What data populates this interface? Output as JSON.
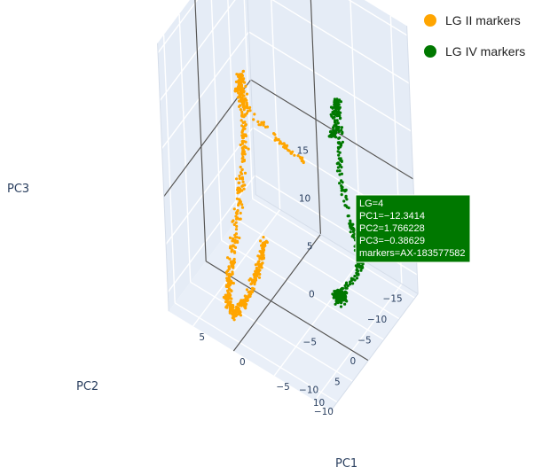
{
  "chart_data": {
    "type": "scatter",
    "dimensions": 3,
    "title": "",
    "axes": {
      "x": {
        "title": "PC1",
        "ticks": [
          "−10",
          "−5",
          "0",
          "5"
        ],
        "range": [
          -12,
          8
        ]
      },
      "y": {
        "title": "PC2",
        "ticks": [
          "−15",
          "−10",
          "−5",
          "0",
          "5",
          "10"
        ],
        "range": [
          -16,
          12
        ]
      },
      "z": {
        "title": "PC3",
        "ticks": [
          "−10",
          "−5",
          "0",
          "5",
          "10",
          "15"
        ],
        "range": [
          -12,
          16
        ]
      }
    },
    "grid": true,
    "background_color": "#e5ecf6",
    "legend": {
      "placement": "top-right",
      "entries": [
        {
          "name": "LG II markers",
          "color": "#ffa500"
        },
        {
          "name": "LG IV markers",
          "color": "#007800"
        }
      ]
    },
    "series": [
      {
        "name": "LG II markers",
        "color": "#ffa500",
        "path": [
          {
            "pc1": 8,
            "pc2": -12,
            "pc3": 0
          },
          {
            "pc1": 8,
            "pc2": -13,
            "pc3": 2
          },
          {
            "pc1": 7,
            "pc2": -11,
            "pc3": 0
          },
          {
            "pc1": 6,
            "pc2": -8,
            "pc3": -3
          },
          {
            "pc1": 5,
            "pc2": -3,
            "pc3": -7
          },
          {
            "pc1": 4,
            "pc2": 2,
            "pc3": -10
          },
          {
            "pc1": 3,
            "pc2": 6,
            "pc3": -11
          },
          {
            "pc1": 1,
            "pc2": 9,
            "pc3": -10
          },
          {
            "pc1": -1,
            "pc2": 10,
            "pc3": -7
          },
          {
            "pc1": -2,
            "pc2": 8,
            "pc3": -4
          },
          {
            "pc1": -2,
            "pc2": 6,
            "pc3": -2
          }
        ],
        "branch": [
          {
            "pc1": 8,
            "pc2": -12,
            "pc3": 0
          },
          {
            "pc1": 6,
            "pc2": -12,
            "pc3": -1
          },
          {
            "pc1": 3,
            "pc2": -13,
            "pc3": -3
          },
          {
            "pc1": 1,
            "pc2": -14,
            "pc3": -4
          }
        ]
      },
      {
        "name": "LG IV markers",
        "color": "#007800",
        "path": [
          {
            "pc1": -3,
            "pc2": -13,
            "pc3": 1
          },
          {
            "pc1": -5,
            "pc2": -10,
            "pc3": 4
          },
          {
            "pc1": -6,
            "pc2": -7,
            "pc3": 8
          },
          {
            "pc1": -7,
            "pc2": -6,
            "pc3": 10
          },
          {
            "pc1": -8,
            "pc2": -4,
            "pc3": 8
          },
          {
            "pc1": -9,
            "pc2": -1,
            "pc3": 5
          },
          {
            "pc1": -11,
            "pc2": 1,
            "pc3": 2
          },
          {
            "pc1": -12.3,
            "pc2": 1.8,
            "pc3": -0.4
          },
          {
            "pc1": -12,
            "pc2": 2,
            "pc3": -2
          },
          {
            "pc1": -10,
            "pc2": 3,
            "pc3": -5
          }
        ],
        "cluster_center": {
          "pc1": -10,
          "pc2": 3,
          "pc3": -5
        }
      }
    ],
    "hover": {
      "lines": [
        "LG=4",
        "PC1=−12.3414",
        "PC2=1.766228",
        "PC3=−0.38629",
        "markers=AX-183577582"
      ],
      "point": {
        "pc1": -12.3414,
        "pc2": 1.766228,
        "pc3": -0.38629
      },
      "color": "#007800"
    }
  }
}
